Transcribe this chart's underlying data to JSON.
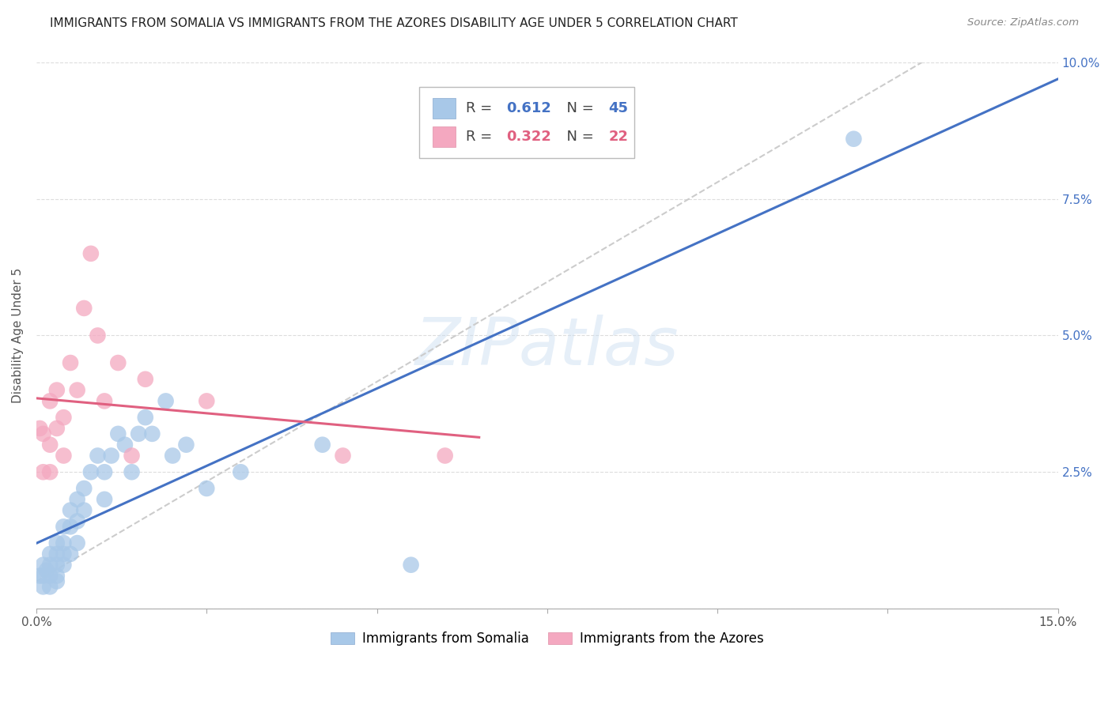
{
  "title": "IMMIGRANTS FROM SOMALIA VS IMMIGRANTS FROM THE AZORES DISABILITY AGE UNDER 5 CORRELATION CHART",
  "source": "Source: ZipAtlas.com",
  "ylabel": "Disability Age Under 5",
  "xlim": [
    0,
    0.15
  ],
  "ylim": [
    0,
    0.1
  ],
  "xticks": [
    0.0,
    0.025,
    0.05,
    0.075,
    0.1,
    0.125,
    0.15
  ],
  "xtick_labels_show": [
    true,
    false,
    false,
    false,
    false,
    false,
    true
  ],
  "xtick_labels": [
    "0.0%",
    "",
    "",
    "",
    "",
    "",
    "15.0%"
  ],
  "yticks": [
    0.0,
    0.025,
    0.05,
    0.075,
    0.1
  ],
  "ytick_labels_right": [
    "",
    "2.5%",
    "5.0%",
    "7.5%",
    "10.0%"
  ],
  "somalia_R": 0.612,
  "somalia_N": 45,
  "azores_R": 0.322,
  "azores_N": 22,
  "somalia_color": "#A8C8E8",
  "azores_color": "#F4A8C0",
  "somalia_line_color": "#4472C4",
  "azores_line_color": "#E06080",
  "ref_line_color": "#CCCCCC",
  "background_color": "#FFFFFF",
  "grid_color": "#DDDDDD",
  "somalia_x": [
    0.0005,
    0.001,
    0.001,
    0.001,
    0.0015,
    0.002,
    0.002,
    0.002,
    0.002,
    0.003,
    0.003,
    0.003,
    0.003,
    0.003,
    0.004,
    0.004,
    0.004,
    0.004,
    0.005,
    0.005,
    0.005,
    0.006,
    0.006,
    0.006,
    0.007,
    0.007,
    0.008,
    0.009,
    0.01,
    0.01,
    0.011,
    0.012,
    0.013,
    0.014,
    0.015,
    0.016,
    0.017,
    0.019,
    0.02,
    0.022,
    0.025,
    0.03,
    0.042,
    0.055,
    0.12
  ],
  "somalia_y": [
    0.006,
    0.008,
    0.006,
    0.004,
    0.007,
    0.01,
    0.008,
    0.006,
    0.004,
    0.012,
    0.01,
    0.008,
    0.006,
    0.005,
    0.015,
    0.012,
    0.01,
    0.008,
    0.018,
    0.015,
    0.01,
    0.02,
    0.016,
    0.012,
    0.022,
    0.018,
    0.025,
    0.028,
    0.025,
    0.02,
    0.028,
    0.032,
    0.03,
    0.025,
    0.032,
    0.035,
    0.032,
    0.038,
    0.028,
    0.03,
    0.022,
    0.025,
    0.03,
    0.008,
    0.086
  ],
  "azores_x": [
    0.0005,
    0.001,
    0.001,
    0.002,
    0.002,
    0.002,
    0.003,
    0.003,
    0.004,
    0.004,
    0.005,
    0.006,
    0.007,
    0.008,
    0.009,
    0.01,
    0.012,
    0.014,
    0.016,
    0.025,
    0.045,
    0.06
  ],
  "azores_y": [
    0.033,
    0.025,
    0.032,
    0.03,
    0.038,
    0.025,
    0.04,
    0.033,
    0.035,
    0.028,
    0.045,
    0.04,
    0.055,
    0.065,
    0.05,
    0.038,
    0.045,
    0.028,
    0.042,
    0.038,
    0.028,
    0.028
  ],
  "legend_somalia": "Immigrants from Somalia",
  "legend_azores": "Immigrants from the Azores",
  "watermark": "ZIPatlas",
  "title_fontsize": 11,
  "axis_label_fontsize": 11,
  "tick_fontsize": 11,
  "legend_fontsize": 12
}
